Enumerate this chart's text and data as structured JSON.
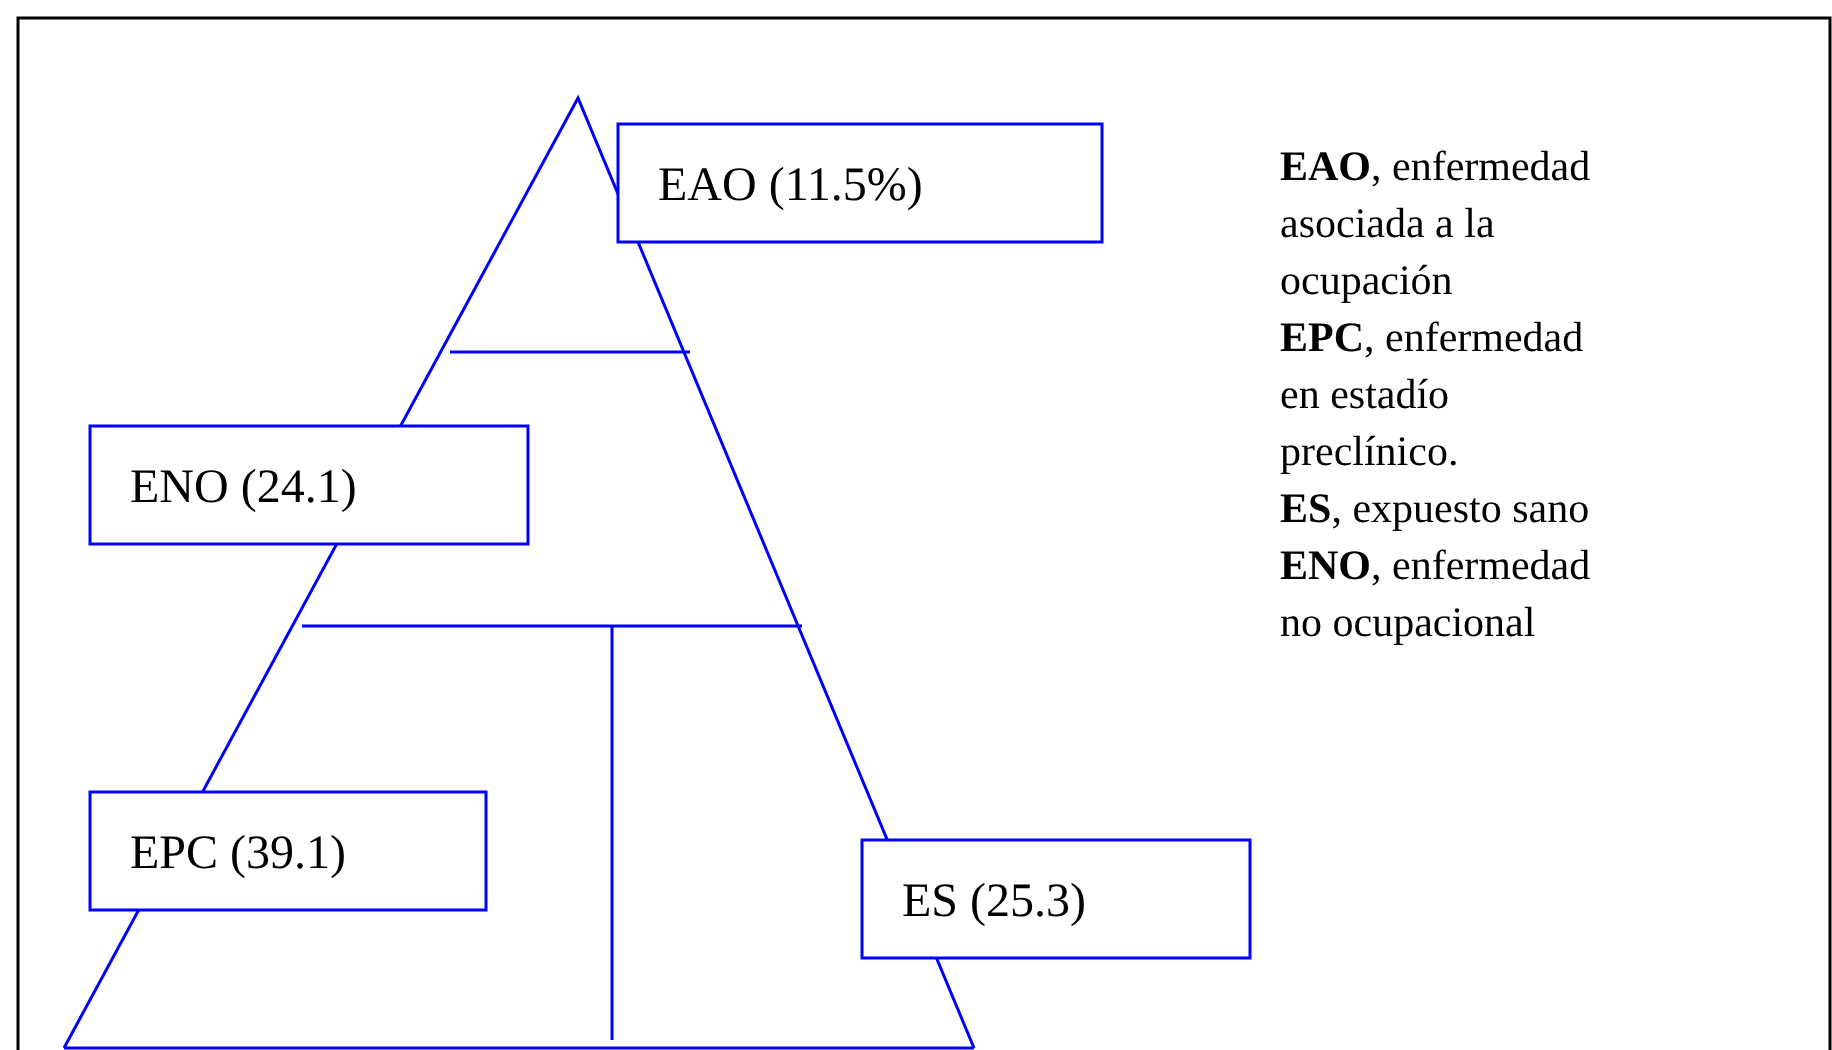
{
  "chart_data": {
    "type": "other",
    "categories": [
      "EAO",
      "ENO",
      "EPC",
      "ES"
    ],
    "values": [
      11.5,
      24.1,
      39.1,
      25.3
    ],
    "value_labels": [
      "(11.5%)",
      "(24.1)",
      "(39.1)",
      "(25.3)"
    ],
    "color": "#0000ff",
    "annotations": [
      "EAO, enfermedad asociada a la ocupación",
      "EPC, enfermedad en estadío preclínico.",
      "ES, expuesto sano",
      "ENO, enfermedad no ocupacional"
    ]
  }
}
